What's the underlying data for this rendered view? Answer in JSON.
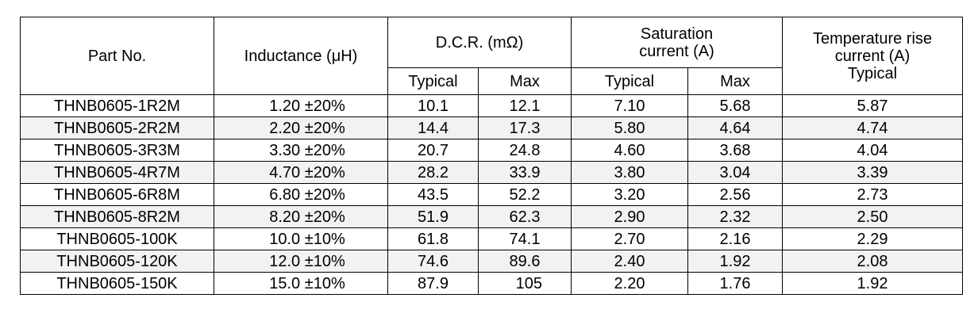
{
  "headers": {
    "part_no": "Part No.",
    "inductance": "Inductance (μH)",
    "dcr": "D.C.R. (mΩ)",
    "saturation_line1": "Saturation",
    "saturation_line2": "current (A)",
    "temp_line1": "Temperature rise",
    "temp_line2": "current (A)",
    "temp_line3": "Typical",
    "typical": "Typical",
    "max": "Max"
  },
  "rows": [
    {
      "part": "THNB0605-1R2M",
      "inductance": "1.20 ±20%",
      "dcr_typ": "10.1",
      "dcr_max": "12.1",
      "sat_typ": "7.10",
      "sat_max": "5.68",
      "temp_typ": "5.87"
    },
    {
      "part": "THNB0605-2R2M",
      "inductance": "2.20 ±20%",
      "dcr_typ": "14.4",
      "dcr_max": "17.3",
      "sat_typ": "5.80",
      "sat_max": "4.64",
      "temp_typ": "4.74"
    },
    {
      "part": "THNB0605-3R3M",
      "inductance": "3.30 ±20%",
      "dcr_typ": "20.7",
      "dcr_max": "24.8",
      "sat_typ": "4.60",
      "sat_max": "3.68",
      "temp_typ": "4.04"
    },
    {
      "part": "THNB0605-4R7M",
      "inductance": "4.70 ±20%",
      "dcr_typ": "28.2",
      "dcr_max": "33.9",
      "sat_typ": "3.80",
      "sat_max": "3.04",
      "temp_typ": "3.39"
    },
    {
      "part": "THNB0605-6R8M",
      "inductance": "6.80 ±20%",
      "dcr_typ": "43.5",
      "dcr_max": "52.2",
      "sat_typ": "3.20",
      "sat_max": "2.56",
      "temp_typ": "2.73"
    },
    {
      "part": "THNB0605-8R2M",
      "inductance": "8.20 ±20%",
      "dcr_typ": "51.9",
      "dcr_max": "62.3",
      "sat_typ": "2.90",
      "sat_max": "2.32",
      "temp_typ": "2.50"
    },
    {
      "part": "THNB0605-100K",
      "inductance": "10.0 ±10%",
      "dcr_typ": "61.8",
      "dcr_max": "74.1",
      "sat_typ": "2.70",
      "sat_max": "2.16",
      "temp_typ": "2.29"
    },
    {
      "part": "THNB0605-120K",
      "inductance": "12.0 ±10%",
      "dcr_typ": "74.6",
      "dcr_max": "89.6",
      "sat_typ": "2.40",
      "sat_max": "1.92",
      "temp_typ": "2.08"
    },
    {
      "part": "THNB0605-150K",
      "inductance": "15.0 ±10%",
      "dcr_typ": "87.9",
      "dcr_max": "105",
      "sat_typ": "2.20",
      "sat_max": "1.76",
      "temp_typ": "1.92"
    }
  ]
}
